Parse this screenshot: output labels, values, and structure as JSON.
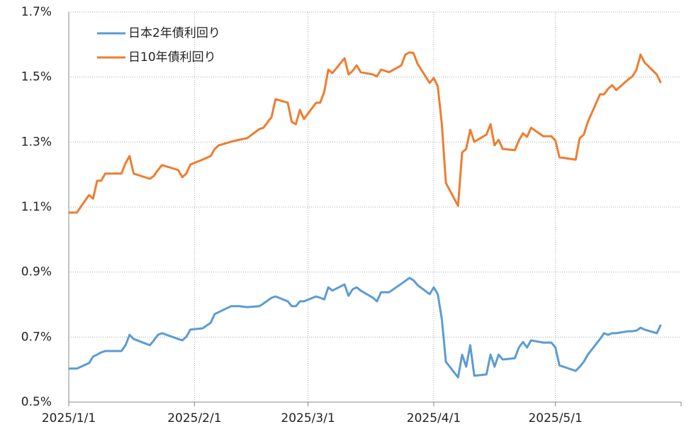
{
  "chart_data": {
    "type": "line",
    "x": [
      "2025/1/1",
      "2025/1/3",
      "2025/1/6",
      "2025/1/7",
      "2025/1/8",
      "2025/1/9",
      "2025/1/10",
      "2025/1/14",
      "2025/1/15",
      "2025/1/16",
      "2025/1/17",
      "2025/1/21",
      "2025/1/22",
      "2025/1/23",
      "2025/1/24",
      "2025/1/28",
      "2025/1/29",
      "2025/1/30",
      "2025/1/31",
      "2025/2/3",
      "2025/2/5",
      "2025/2/6",
      "2025/2/7",
      "2025/2/10",
      "2025/2/12",
      "2025/2/14",
      "2025/2/17",
      "2025/2/18",
      "2025/2/20",
      "2025/2/21",
      "2025/2/24",
      "2025/2/25",
      "2025/2/26",
      "2025/2/27",
      "2025/2/28",
      "2025/3/3",
      "2025/3/4",
      "2025/3/5",
      "2025/3/6",
      "2025/3/7",
      "2025/3/10",
      "2025/3/11",
      "2025/3/12",
      "2025/3/13",
      "2025/3/14",
      "2025/3/17",
      "2025/3/18",
      "2025/3/19",
      "2025/3/21",
      "2025/3/24",
      "2025/3/25",
      "2025/3/26",
      "2025/3/27",
      "2025/3/28",
      "2025/3/31",
      "2025/4/1",
      "2025/4/2",
      "2025/4/3",
      "2025/4/4",
      "2025/4/7",
      "2025/4/8",
      "2025/4/9",
      "2025/4/10",
      "2025/4/11",
      "2025/4/14",
      "2025/4/15",
      "2025/4/16",
      "2025/4/17",
      "2025/4/18",
      "2025/4/21",
      "2025/4/22",
      "2025/4/23",
      "2025/4/24",
      "2025/4/25",
      "2025/4/28",
      "2025/4/30",
      "2025/5/1",
      "2025/5/2",
      "2025/5/6",
      "2025/5/7",
      "2025/5/8",
      "2025/5/9",
      "2025/5/12",
      "2025/5/13",
      "2025/5/14",
      "2025/5/15",
      "2025/5/16",
      "2025/5/19",
      "2025/5/20",
      "2025/5/21",
      "2025/5/22",
      "2025/5/23",
      "2025/5/26",
      "2025/5/27"
    ],
    "series": [
      {
        "name": "日本2年債利回り",
        "color": "#5b9bd5",
        "values": [
          0.603,
          0.603,
          0.62,
          0.64,
          0.646,
          0.653,
          0.657,
          0.657,
          0.675,
          0.707,
          0.694,
          0.675,
          0.69,
          0.707,
          0.712,
          0.694,
          0.69,
          0.701,
          0.723,
          0.727,
          0.744,
          0.771,
          0.777,
          0.795,
          0.795,
          0.792,
          0.795,
          0.803,
          0.821,
          0.825,
          0.81,
          0.795,
          0.795,
          0.81,
          0.81,
          0.825,
          0.821,
          0.816,
          0.853,
          0.843,
          0.862,
          0.827,
          0.847,
          0.853,
          0.843,
          0.821,
          0.81,
          0.838,
          0.838,
          0.864,
          0.873,
          0.882,
          0.875,
          0.86,
          0.832,
          0.853,
          0.832,
          0.755,
          0.624,
          0.576,
          0.646,
          0.609,
          0.675,
          0.581,
          0.585,
          0.646,
          0.609,
          0.646,
          0.631,
          0.635,
          0.668,
          0.685,
          0.668,
          0.69,
          0.683,
          0.683,
          0.668,
          0.613,
          0.596,
          0.609,
          0.624,
          0.646,
          0.694,
          0.712,
          0.707,
          0.712,
          0.712,
          0.718,
          0.718,
          0.72,
          0.729,
          0.723,
          0.712,
          0.738
        ]
      },
      {
        "name": "日10年債利回り",
        "color": "#ed7d31",
        "values": [
          1.083,
          1.083,
          1.137,
          1.126,
          1.181,
          1.181,
          1.203,
          1.203,
          1.235,
          1.257,
          1.203,
          1.187,
          1.196,
          1.214,
          1.229,
          1.214,
          1.192,
          1.203,
          1.231,
          1.246,
          1.257,
          1.279,
          1.29,
          1.301,
          1.307,
          1.312,
          1.34,
          1.344,
          1.377,
          1.432,
          1.421,
          1.362,
          1.355,
          1.399,
          1.371,
          1.421,
          1.421,
          1.454,
          1.523,
          1.512,
          1.558,
          1.508,
          1.519,
          1.536,
          1.515,
          1.508,
          1.502,
          1.523,
          1.515,
          1.536,
          1.569,
          1.576,
          1.574,
          1.541,
          1.482,
          1.497,
          1.471,
          1.355,
          1.174,
          1.104,
          1.268,
          1.279,
          1.338,
          1.301,
          1.323,
          1.355,
          1.29,
          1.307,
          1.279,
          1.275,
          1.305,
          1.327,
          1.316,
          1.344,
          1.318,
          1.318,
          1.305,
          1.253,
          1.246,
          1.312,
          1.323,
          1.362,
          1.447,
          1.447,
          1.464,
          1.475,
          1.46,
          1.493,
          1.502,
          1.523,
          1.569,
          1.545,
          1.508,
          1.482
        ]
      }
    ],
    "xlim": [
      "2025/1/1",
      "2025/6/1"
    ],
    "xticks": [
      "2025/1/1",
      "2025/2/1",
      "2025/3/1",
      "2025/4/1",
      "2025/5/1"
    ],
    "ylim": [
      0.5,
      1.7
    ],
    "yticks": [
      {
        "value": 0.5,
        "label": "0.5%"
      },
      {
        "value": 0.7,
        "label": "0.7%"
      },
      {
        "value": 0.9,
        "label": "0.9%"
      },
      {
        "value": 1.1,
        "label": "1.1%"
      },
      {
        "value": 1.3,
        "label": "1.3%"
      },
      {
        "value": 1.5,
        "label": "1.5%"
      },
      {
        "value": 1.7,
        "label": "1.7%"
      }
    ],
    "grid": true,
    "legend": "upper left"
  }
}
